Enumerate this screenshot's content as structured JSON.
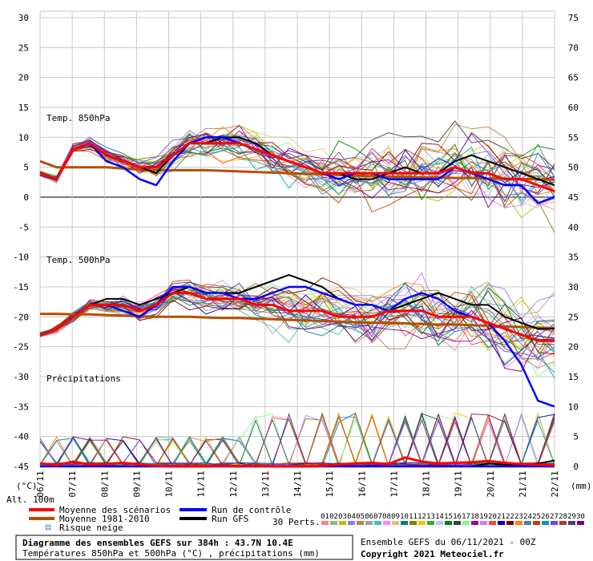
{
  "chart_data": {
    "type": "line",
    "title": "Diagramme des ensembles GEFS sur 384h : 43.7N 10.4E",
    "subtitle": "Températures 850hPa et 500hPa (°C) , précipitations (mm)",
    "left_axis": {
      "label": "(°C)",
      "ylim": [
        -45,
        30
      ],
      "ticks": [
        30,
        25,
        20,
        15,
        10,
        5,
        0,
        -5,
        -10,
        -15,
        -20,
        -25,
        -30,
        -35,
        -40,
        -45
      ]
    },
    "right_axis": {
      "label": "(mm)",
      "ylim": [
        0,
        75
      ],
      "ticks": [
        75,
        70,
        65,
        60,
        55,
        50,
        45,
        40,
        35,
        30,
        25,
        20,
        15,
        10,
        5,
        0
      ]
    },
    "x_labels": [
      "06/11",
      "07/11",
      "08/11",
      "09/11",
      "10/11",
      "11/11",
      "12/11",
      "13/11",
      "14/11",
      "15/11",
      "16/11",
      "17/11",
      "18/11",
      "19/11",
      "20/11",
      "21/11",
      "22/11"
    ],
    "altitude_label": "Alt. 100m",
    "section_labels": {
      "t850": "Temp. 850hPa",
      "t500": "Temp. 500hPa",
      "precip": "Précipitations"
    },
    "legend": {
      "mean": "Moyenne des scénarios",
      "clim": "Moyenne 1981-2010",
      "snow": "Risque neige",
      "control": "Run de contrôle",
      "gfs": "Run GFS",
      "perts_label": "30 Perts."
    },
    "member_ids": [
      "01",
      "02",
      "03",
      "04",
      "05",
      "06",
      "07",
      "08",
      "09",
      "10",
      "11",
      "12",
      "13",
      "14",
      "15",
      "16",
      "17",
      "18",
      "19",
      "20",
      "21",
      "22",
      "23",
      "24",
      "25",
      "26",
      "27",
      "28",
      "29",
      "30"
    ],
    "member_colors": [
      "#ff8080",
      "#80c080",
      "#c0c000",
      "#8080ff",
      "#c08040",
      "#a0a0a0",
      "#40c0c0",
      "#ff80ff",
      "#e0c080",
      "#008080",
      "#808000",
      "#ffc000",
      "#40a040",
      "#c0c0ff",
      "#008000",
      "#404040",
      "#80ff80",
      "#a000a0",
      "#c080ff",
      "#ff4040",
      "#0000c0",
      "#800000",
      "#ff8000",
      "#4080c0",
      "#c04000",
      "#00a0a0",
      "#8040ff",
      "#a04040",
      "#404080",
      "#800080"
    ],
    "series": [
      {
        "name": "Moyenne des scénarios",
        "level": "t850",
        "color": "#ff0000",
        "values": [
          4,
          3,
          8,
          9,
          7,
          6,
          5,
          5,
          7,
          9,
          9,
          9,
          9,
          8,
          7,
          6,
          5,
          4,
          4,
          4,
          4,
          4,
          4,
          4,
          4,
          5,
          4,
          4,
          3,
          3,
          2,
          1
        ]
      },
      {
        "name": "Moyenne 1981-2010",
        "level": "t850",
        "color": "#b45000",
        "values": [
          6,
          5,
          5,
          5,
          5,
          4.8,
          4.6,
          4.5,
          4.5,
          4.5,
          4.5,
          4.4,
          4.3,
          4.2,
          4.1,
          4,
          3.9,
          3.8,
          3.7,
          3.6,
          3.5,
          3.4,
          3.4,
          3.3,
          3.3,
          3.2,
          3.2,
          3.1,
          3.1,
          3,
          3,
          2.9
        ]
      },
      {
        "name": "Run de contrôle",
        "level": "t850",
        "color": "#0000ff",
        "values": [
          4,
          3,
          8,
          9,
          6,
          5,
          3,
          2,
          6,
          9,
          10,
          10,
          9,
          8,
          7,
          6,
          5,
          4,
          3,
          4,
          4,
          3,
          3,
          3,
          3,
          5,
          4,
          3,
          2,
          2,
          -1,
          0
        ]
      },
      {
        "name": "Run GFS",
        "level": "t850",
        "color": "#000000",
        "values": [
          4,
          3,
          8,
          9,
          7,
          6,
          5,
          4,
          7,
          9,
          9,
          10,
          10,
          9,
          7,
          6,
          5,
          4,
          4,
          3,
          3,
          4,
          5,
          4,
          4,
          6,
          7,
          6,
          5,
          4,
          3,
          2
        ]
      },
      {
        "name": "Moyenne des scénarios",
        "level": "t500",
        "color": "#ff0000",
        "values": [
          -23,
          -22,
          -20,
          -18,
          -18,
          -18,
          -19,
          -18,
          -16,
          -16,
          -17,
          -17,
          -17,
          -18,
          -18,
          -19,
          -19,
          -19,
          -20,
          -20,
          -20,
          -19,
          -19,
          -19,
          -20,
          -20,
          -20,
          -21,
          -22,
          -23,
          -24,
          -24
        ]
      },
      {
        "name": "Moyenne 1981-2010",
        "level": "t500",
        "color": "#b45000",
        "values": [
          -19.5,
          -19.5,
          -19.6,
          -19.6,
          -19.7,
          -19.8,
          -19.9,
          -20,
          -20,
          -20,
          -20.1,
          -20.2,
          -20.2,
          -20.3,
          -20.4,
          -20.5,
          -20.6,
          -20.7,
          -20.8,
          -20.9,
          -21,
          -21,
          -21.1,
          -21.2,
          -21.3,
          -21.3,
          -21.4,
          -21.5,
          -21.6,
          -21.7,
          -21.8,
          -21.9
        ]
      },
      {
        "name": "Run de contrôle",
        "level": "t500",
        "color": "#0000ff",
        "values": [
          -23,
          -22,
          -20,
          -18,
          -18,
          -19,
          -20,
          -18,
          -15,
          -15,
          -16,
          -16,
          -17,
          -17,
          -16,
          -15,
          -15,
          -16,
          -17,
          -18,
          -18,
          -19,
          -17,
          -16,
          -17,
          -19,
          -20,
          -21,
          -24,
          -28,
          -34,
          -35
        ]
      },
      {
        "name": "Run GFS",
        "level": "t500",
        "color": "#000000",
        "values": [
          -23,
          -22,
          -20,
          -18,
          -17,
          -17,
          -18,
          -17,
          -16,
          -15,
          -16,
          -16,
          -16,
          -15,
          -14,
          -13,
          -14,
          -15,
          -17,
          -18,
          -18,
          -19,
          -18,
          -17,
          -16,
          -17,
          -18,
          -18,
          -20,
          -21,
          -22,
          -22
        ]
      },
      {
        "name": "Moyenne des scénarios",
        "level": "precip",
        "color": "#ff0000",
        "values": [
          0.5,
          0.2,
          0.8,
          0.3,
          0.4,
          0.6,
          0.3,
          0.1,
          0,
          0,
          0,
          0.1,
          0,
          0.1,
          0,
          0,
          0,
          0.1,
          0.3,
          0.5,
          0.6,
          0.4,
          1.5,
          0.8,
          0.5,
          0.6,
          0.7,
          0.9,
          0.6,
          0.4,
          0.3,
          0.2
        ]
      },
      {
        "name": "Run de contrôle",
        "level": "precip",
        "color": "#0000ff",
        "values": [
          0,
          0,
          0,
          0,
          0,
          0,
          0,
          0,
          0,
          0,
          0,
          0,
          0,
          0,
          0,
          0,
          0,
          0,
          0,
          0,
          0,
          0,
          0,
          0,
          0,
          0,
          0,
          0,
          0,
          0,
          0,
          0
        ]
      },
      {
        "name": "Run GFS",
        "level": "precip",
        "color": "#000000",
        "values": [
          0,
          0,
          0,
          0,
          0,
          0,
          0,
          0,
          0,
          0,
          0,
          0,
          0,
          0,
          0,
          0,
          0,
          0,
          0,
          0,
          0,
          0,
          0,
          0,
          0,
          0,
          0,
          0.5,
          0.3,
          0.2,
          0.5,
          1
        ]
      }
    ],
    "grid": true
  },
  "footer": {
    "ensemble_line": "Ensemble GEFS du 06/11/2021 - 00Z",
    "copyright": "Copyright 2021 Meteociel.fr"
  }
}
